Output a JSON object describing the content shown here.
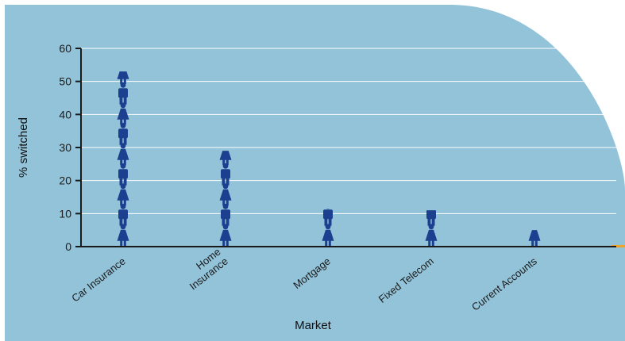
{
  "chart_data": {
    "type": "bar",
    "xlabel": "Market",
    "ylabel": "% switched",
    "ylim": [
      0,
      60
    ],
    "yticks": [
      0,
      10,
      20,
      30,
      40,
      50,
      60
    ],
    "categories": [
      [
        "Car Insurance"
      ],
      [
        "Home",
        "Insurance"
      ],
      [
        "Mortgage"
      ],
      [
        "Fixed Telecom"
      ],
      [
        "Current Accounts"
      ]
    ],
    "values": [
      53,
      29,
      11.5,
      11,
      5
    ],
    "grid": true,
    "legend": "none"
  },
  "colors": {
    "background_panel": "#93c3d9",
    "figure_icon": "#1d3f8f",
    "axis": "#1a1a1a",
    "gridline": "#ffffff",
    "accent_line": "#f0a32a"
  },
  "icon": "person-pictogram"
}
